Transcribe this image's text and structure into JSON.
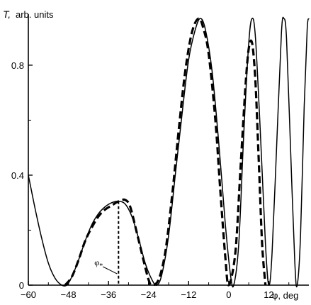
{
  "chart_data": {
    "type": "line",
    "ylabel_symbol": "T,",
    "ylabel_units": "arb. units",
    "xlabel": "φ, deg",
    "xlim": [
      -60,
      24
    ],
    "ylim": [
      0,
      0.97
    ],
    "xticks": [
      "−60",
      "−48",
      "−36",
      "−24",
      "−12",
      "0",
      "12"
    ],
    "xtick_values": [
      -60,
      -48,
      -36,
      -24,
      -12,
      0,
      12
    ],
    "yticks": [
      "0",
      "0.4",
      "0.8"
    ],
    "ytick_values": [
      0,
      0.4,
      0.8
    ],
    "annotation": {
      "text": "φ",
      "subscript": "*",
      "x": -33,
      "y": 0
    },
    "series": [
      {
        "style": "solid",
        "points": [
          [
            -60,
            0.4
          ],
          [
            -58,
            0.28
          ],
          [
            -56,
            0.17
          ],
          [
            -54,
            0.08
          ],
          [
            -52,
            0.025
          ],
          [
            -50,
            0.0
          ],
          [
            -48.5,
            0.0
          ],
          [
            -47,
            0.03
          ],
          [
            -45,
            0.09
          ],
          [
            -43,
            0.16
          ],
          [
            -41,
            0.22
          ],
          [
            -39,
            0.26
          ],
          [
            -37,
            0.285
          ],
          [
            -35,
            0.3
          ],
          [
            -33,
            0.305
          ],
          [
            -31,
            0.295
          ],
          [
            -29,
            0.25
          ],
          [
            -27,
            0.17
          ],
          [
            -25,
            0.08
          ],
          [
            -23,
            0.02
          ],
          [
            -21.5,
            0.0
          ],
          [
            -20,
            0.04
          ],
          [
            -18,
            0.18
          ],
          [
            -16,
            0.4
          ],
          [
            -14,
            0.62
          ],
          [
            -12,
            0.82
          ],
          [
            -10,
            0.93
          ],
          [
            -8.5,
            0.97
          ],
          [
            -7,
            0.93
          ],
          [
            -5,
            0.78
          ],
          [
            -3,
            0.52
          ],
          [
            -1,
            0.22
          ],
          [
            0.5,
            0.04
          ],
          [
            1.5,
            0.0
          ],
          [
            3,
            0.15
          ],
          [
            4.5,
            0.55
          ],
          [
            6,
            0.88
          ],
          [
            7,
            0.97
          ],
          [
            8,
            0.9
          ],
          [
            9.5,
            0.55
          ],
          [
            11,
            0.15
          ],
          [
            12,
            0.0
          ],
          [
            13,
            0.12
          ],
          [
            14.5,
            0.55
          ],
          [
            15.8,
            0.92
          ],
          [
            16.5,
            0.97
          ],
          [
            17.3,
            0.9
          ],
          [
            18.5,
            0.5
          ],
          [
            19.8,
            0.08
          ],
          [
            20.5,
            0.0
          ],
          [
            21.5,
            0.18
          ],
          [
            22.6,
            0.65
          ],
          [
            23.5,
            0.93
          ],
          [
            24,
            0.97
          ]
        ]
      },
      {
        "style": "dashed",
        "points": [
          [
            -49,
            0.0
          ],
          [
            -47,
            0.03
          ],
          [
            -45,
            0.09
          ],
          [
            -43,
            0.16
          ],
          [
            -41,
            0.21
          ],
          [
            -39,
            0.25
          ],
          [
            -37,
            0.275
          ],
          [
            -35,
            0.29
          ],
          [
            -33,
            0.305
          ],
          [
            -31,
            0.31
          ],
          [
            -29.5,
            0.285
          ],
          [
            -27.5,
            0.19
          ],
          [
            -25.5,
            0.09
          ],
          [
            -24,
            0.02
          ],
          [
            -23,
            0.0
          ],
          [
            -21,
            0.02
          ],
          [
            -19,
            0.12
          ],
          [
            -17,
            0.32
          ],
          [
            -15,
            0.56
          ],
          [
            -13,
            0.78
          ],
          [
            -11,
            0.92
          ],
          [
            -9,
            0.97
          ],
          [
            -7.5,
            0.93
          ],
          [
            -6,
            0.84
          ],
          [
            -4,
            0.6
          ],
          [
            -2.5,
            0.34
          ],
          [
            -1,
            0.1
          ],
          [
            0,
            0.0
          ],
          [
            2,
            0.12
          ],
          [
            3.5,
            0.42
          ],
          [
            5,
            0.72
          ],
          [
            6,
            0.86
          ],
          [
            7,
            0.88
          ],
          [
            8,
            0.74
          ],
          [
            9,
            0.45
          ],
          [
            10,
            0.15
          ],
          [
            11,
            0.0
          ]
        ]
      }
    ]
  }
}
